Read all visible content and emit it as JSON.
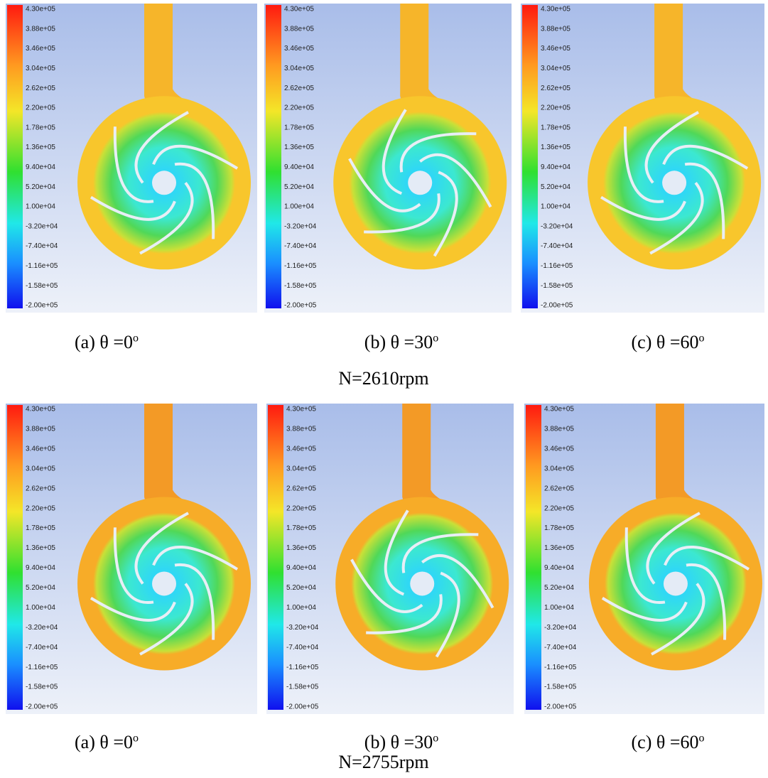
{
  "colorbar": {
    "labels": [
      "4.30e+05",
      "3.88e+05",
      "3.46e+05",
      "3.04e+05",
      "2.62e+05",
      "2.20e+05",
      "1.78e+05",
      "1.36e+05",
      "9.40e+04",
      "5.20e+04",
      "1.00e+04",
      "-3.20e+04",
      "-7.40e+04",
      "-1.16e+05",
      "-1.58e+05",
      "-2.00e+05"
    ]
  },
  "groups": [
    {
      "label": "N=2610rpm",
      "panels": [
        {
          "caption": "(a) θ =0",
          "degree": "o"
        },
        {
          "caption": "(b) θ =30",
          "degree": "o"
        },
        {
          "caption": "(c) θ =60",
          "degree": "o"
        }
      ]
    },
    {
      "label": "N=2755rpm",
      "panels": [
        {
          "caption": "(a) θ =0",
          "degree": "o"
        },
        {
          "caption": "(b) θ =30",
          "degree": "o"
        },
        {
          "caption": "(c) θ =60",
          "degree": "o"
        }
      ]
    }
  ]
}
